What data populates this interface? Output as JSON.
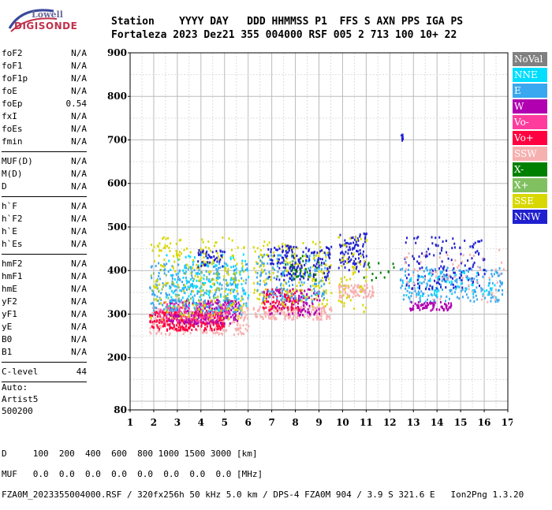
{
  "logo": {
    "line1": "Lowell",
    "line2": "DIGISONDE"
  },
  "header": {
    "line1": "Station    YYYY DAY   DDD HHMMSS P1  FFS S AXN PPS IGA PS",
    "line2": "Fortaleza 2023 Dez21 355 004000 RSF 005 2 713 100 10+ 22"
  },
  "params": [
    [
      {
        "n": "foF2",
        "v": "N/A"
      },
      {
        "n": "foF1",
        "v": "N/A"
      },
      {
        "n": "foF1p",
        "v": "N/A"
      },
      {
        "n": "foE",
        "v": "N/A"
      },
      {
        "n": "foEp",
        "v": "0.54"
      },
      {
        "n": "fxI",
        "v": "N/A"
      },
      {
        "n": "foEs",
        "v": "N/A"
      },
      {
        "n": "fmin",
        "v": "N/A"
      }
    ],
    [
      {
        "n": "MUF(D)",
        "v": "N/A"
      },
      {
        "n": "M(D)",
        "v": "N/A"
      },
      {
        "n": "D",
        "v": "N/A"
      }
    ],
    [
      {
        "n": "h`F",
        "v": "N/A"
      },
      {
        "n": "h`F2",
        "v": "N/A"
      },
      {
        "n": "h`E",
        "v": "N/A"
      },
      {
        "n": "h`Es",
        "v": "N/A"
      }
    ],
    [
      {
        "n": "hmF2",
        "v": "N/A"
      },
      {
        "n": "hmF1",
        "v": "N/A"
      },
      {
        "n": "hmE",
        "v": "N/A"
      },
      {
        "n": "yF2",
        "v": "N/A"
      },
      {
        "n": "yF1",
        "v": "N/A"
      },
      {
        "n": "yE",
        "v": "N/A"
      },
      {
        "n": "B0",
        "v": "N/A"
      },
      {
        "n": "B1",
        "v": "N/A"
      }
    ],
    [
      {
        "n": "C-level",
        "v": "44"
      }
    ]
  ],
  "auto": {
    "l1": "Auto:",
    "l2": "Artist5",
    "l3": "500200"
  },
  "legend": [
    {
      "label": "NoVal",
      "color": "#808080"
    },
    {
      "label": "NNE",
      "color": "#00ddff"
    },
    {
      "label": "E",
      "color": "#3aa8f0"
    },
    {
      "label": "W",
      "color": "#b000b0"
    },
    {
      "label": "Vo-",
      "color": "#ff3c9e"
    },
    {
      "label": "Vo+",
      "color": "#ff0040"
    },
    {
      "label": "SSW",
      "color": "#f7b0b0"
    },
    {
      "label": "X-",
      "color": "#008000"
    },
    {
      "label": "X+",
      "color": "#80c060"
    },
    {
      "label": "SSE",
      "color": "#d8d800"
    },
    {
      "label": "NNW",
      "color": "#2020d0"
    }
  ],
  "footer": {
    "d_line": "D     100  200  400  600  800 1000 1500 3000 [km]",
    "muf_line": "MUF   0.0  0.0  0.0  0.0  0.0  0.0  0.0  0.0 [MHz]",
    "info_line": "FZA0M_2023355004000.RSF / 320fx256h 50 kHz 5.0 km / DPS-4 FZA0M 904 / 3.9 S 321.6 E   Ion2Png 1.3.20"
  },
  "chart_data": {
    "type": "scatter",
    "xlim": [
      1,
      17
    ],
    "ylim": [
      80,
      900
    ],
    "x_ticks": [
      1,
      2,
      3,
      4,
      5,
      6,
      7,
      8,
      9,
      10,
      11,
      12,
      13,
      14,
      15,
      16,
      17
    ],
    "y_ticks": [
      80,
      200,
      300,
      400,
      500,
      600,
      700,
      800,
      900
    ],
    "grid": true,
    "legend_position": "right",
    "clusters": [
      {
        "series": "SSW",
        "x": [
          1.8,
          6.0
        ],
        "y": [
          255,
          320
        ],
        "n": 260
      },
      {
        "series": "Vo+",
        "x": [
          1.8,
          5.0
        ],
        "y": [
          265,
          310
        ],
        "n": 260
      },
      {
        "series": "W",
        "x": [
          2.6,
          5.6
        ],
        "y": [
          280,
          335
        ],
        "n": 240
      },
      {
        "series": "Vo-",
        "x": [
          2.2,
          5.2
        ],
        "y": [
          285,
          330
        ],
        "n": 120
      },
      {
        "series": "E",
        "x": [
          1.8,
          6.0
        ],
        "y": [
          300,
          420
        ],
        "n": 260
      },
      {
        "series": "NNE",
        "x": [
          2.5,
          6.0
        ],
        "y": [
          310,
          440
        ],
        "n": 140
      },
      {
        "series": "SSE",
        "x": [
          1.8,
          5.8
        ],
        "y": [
          290,
          480
        ],
        "n": 220
      },
      {
        "series": "X+",
        "x": [
          1.8,
          5.5
        ],
        "y": [
          310,
          400
        ],
        "n": 50
      },
      {
        "series": "NNW",
        "x": [
          3.8,
          5.0
        ],
        "y": [
          410,
          450
        ],
        "n": 40
      },
      {
        "series": "SSW",
        "x": [
          6.2,
          9.5
        ],
        "y": [
          290,
          320
        ],
        "n": 180
      },
      {
        "series": "W",
        "x": [
          6.6,
          9.0
        ],
        "y": [
          300,
          360
        ],
        "n": 120
      },
      {
        "series": "Vo+",
        "x": [
          6.6,
          8.2
        ],
        "y": [
          310,
          360
        ],
        "n": 80
      },
      {
        "series": "SSE",
        "x": [
          6.2,
          9.5
        ],
        "y": [
          320,
          470
        ],
        "n": 200
      },
      {
        "series": "E",
        "x": [
          6.3,
          9.3
        ],
        "y": [
          330,
          440
        ],
        "n": 160
      },
      {
        "series": "NNW",
        "x": [
          6.8,
          9.5
        ],
        "y": [
          380,
          460
        ],
        "n": 150
      },
      {
        "series": "X-",
        "x": [
          7.5,
          9.0
        ],
        "y": [
          380,
          440
        ],
        "n": 25
      },
      {
        "series": "SSW",
        "x": [
          9.8,
          11.3
        ],
        "y": [
          340,
          370
        ],
        "n": 90
      },
      {
        "series": "NNW",
        "x": [
          9.8,
          11.0
        ],
        "y": [
          400,
          490
        ],
        "n": 90
      },
      {
        "series": "SSE",
        "x": [
          9.8,
          11.0
        ],
        "y": [
          300,
          480
        ],
        "n": 60
      },
      {
        "series": "X-",
        "x": [
          10.8,
          12.6
        ],
        "y": [
          380,
          420
        ],
        "n": 14
      },
      {
        "series": "E",
        "x": [
          12.4,
          16.8
        ],
        "y": [
          330,
          410
        ],
        "n": 200
      },
      {
        "series": "NNW",
        "x": [
          12.6,
          16.0
        ],
        "y": [
          360,
          480
        ],
        "n": 140
      },
      {
        "series": "W",
        "x": [
          12.8,
          14.6
        ],
        "y": [
          310,
          330
        ],
        "n": 70
      },
      {
        "series": "NNE",
        "x": [
          12.5,
          16.5
        ],
        "y": [
          340,
          400
        ],
        "n": 60
      },
      {
        "series": "SSW",
        "x": [
          12.5,
          16.8
        ],
        "y": [
          330,
          450
        ],
        "n": 60
      },
      {
        "series": "NNW",
        "x": [
          12.45,
          12.55
        ],
        "y": [
          700,
          715
        ],
        "n": 6
      }
    ]
  }
}
